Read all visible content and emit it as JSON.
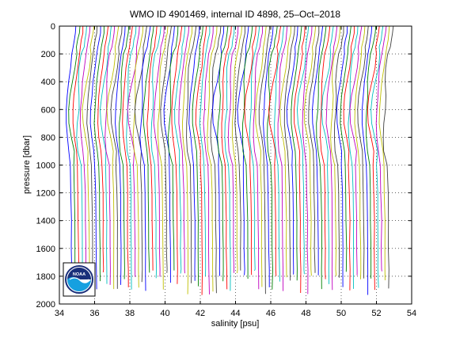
{
  "chart_data": {
    "type": "line",
    "title": "WMO ID 4901469, internal ID 4898, 25–Oct–2018",
    "xlabel": "salinity [psu]",
    "ylabel": "pressure [dbar]",
    "xlim": [
      34,
      54
    ],
    "ylim": [
      0,
      2000
    ],
    "y_reversed": true,
    "xticks": [
      "34",
      "36",
      "38",
      "40",
      "42",
      "44",
      "46",
      "48",
      "50",
      "52",
      "54"
    ],
    "yticks": [
      "0",
      "200",
      "400",
      "600",
      "800",
      "1000",
      "1200",
      "1400",
      "1600",
      "1800",
      "2000"
    ],
    "grid": true,
    "grid_style": "dotted",
    "profile_offset_psu": 0.2,
    "profile_count": 91,
    "profile_colors": [
      "#0000ff",
      "#008000",
      "#ff0000",
      "#00bfbf",
      "#bf00bf",
      "#bfbf00",
      "#404040"
    ],
    "base_profile": {
      "pressure": [
        0,
        50,
        100,
        150,
        200,
        300,
        400,
        500,
        600,
        700,
        800,
        900,
        1000,
        1200,
        1400,
        1600,
        1750,
        1850
      ],
      "salinity": [
        34.95,
        34.92,
        34.85,
        34.78,
        34.72,
        34.62,
        34.52,
        34.45,
        34.4,
        34.38,
        34.45,
        34.55,
        34.62,
        34.66,
        34.68,
        34.69,
        34.7,
        34.7
      ]
    },
    "logo": "noaa-logo"
  },
  "logo": {
    "text": "NOAA"
  }
}
